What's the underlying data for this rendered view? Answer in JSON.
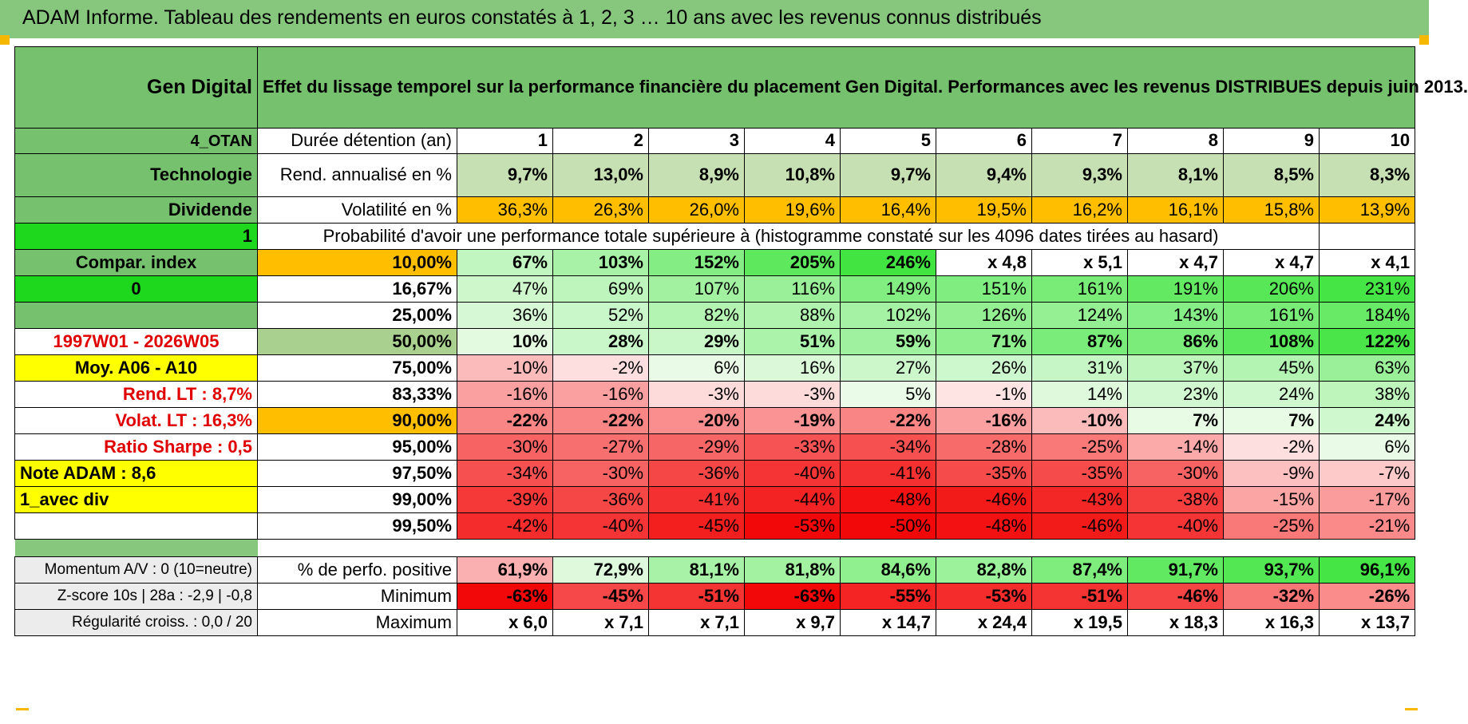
{
  "title": "ADAM Informe. Tableau des rendements en euros constatés à 1, 2, 3 … 10 ans avec les revenus connus distribués",
  "header": {
    "fund": "Gen Digital",
    "description": "Effet du lissage temporel sur la performance financière du placement Gen Digital. Performances avec les revenus DISTRIBUES depuis juin 2013."
  },
  "rows": {
    "duration": {
      "side": "4_OTAN",
      "label": "Durée détention (an)",
      "values": [
        "1",
        "2",
        "3",
        "4",
        "5",
        "6",
        "7",
        "8",
        "9",
        "10"
      ]
    },
    "rend": {
      "side": "Technologie",
      "label": "Rend. annualisé en %",
      "values": [
        "9,7%",
        "13,0%",
        "8,9%",
        "10,8%",
        "9,7%",
        "9,4%",
        "9,3%",
        "8,1%",
        "8,5%",
        "8,3%"
      ]
    },
    "vol": {
      "side": "Dividende",
      "label": "Volatilité en %",
      "values": [
        "36,3%",
        "26,3%",
        "26,0%",
        "19,6%",
        "16,4%",
        "19,5%",
        "16,2%",
        "16,1%",
        "15,8%",
        "13,9%"
      ]
    },
    "prob_header": {
      "side": "1",
      "label": "Probabilité d'avoir une performance totale supérieure à (histogramme constaté sur les 4096 dates tirées au hasard)"
    }
  },
  "prob_rows": [
    {
      "side": "Compar. index",
      "pct": "10,00%",
      "values": [
        "67%",
        "103%",
        "152%",
        "205%",
        "246%",
        "x 4,8",
        "x 5,1",
        "x 4,7",
        "x 4,7",
        "x 4,1"
      ]
    },
    {
      "side": "0",
      "pct": "16,67%",
      "values": [
        "47%",
        "69%",
        "107%",
        "116%",
        "149%",
        "151%",
        "161%",
        "191%",
        "206%",
        "231%"
      ]
    },
    {
      "side": "",
      "pct": "25,00%",
      "values": [
        "36%",
        "52%",
        "82%",
        "88%",
        "102%",
        "126%",
        "124%",
        "143%",
        "161%",
        "184%"
      ]
    },
    {
      "side": "1997W01 - 2026W05",
      "pct": "50,00%",
      "values": [
        "10%",
        "28%",
        "29%",
        "51%",
        "59%",
        "71%",
        "87%",
        "86%",
        "108%",
        "122%"
      ]
    },
    {
      "side": "Moy. A06 - A10",
      "pct": "75,00%",
      "values": [
        "-10%",
        "-2%",
        "6%",
        "16%",
        "27%",
        "26%",
        "31%",
        "37%",
        "45%",
        "63%"
      ]
    },
    {
      "side": "Rend. LT :   8,7%",
      "pct": "83,33%",
      "values": [
        "-16%",
        "-16%",
        "-3%",
        "-3%",
        "5%",
        "-1%",
        "14%",
        "23%",
        "24%",
        "38%"
      ]
    },
    {
      "side": "Volat. LT :   16,3%",
      "pct": "90,00%",
      "values": [
        "-22%",
        "-22%",
        "-20%",
        "-19%",
        "-22%",
        "-16%",
        "-10%",
        "7%",
        "7%",
        "24%"
      ]
    },
    {
      "side": "Ratio Sharpe :    0,5",
      "pct": "95,00%",
      "values": [
        "-30%",
        "-27%",
        "-29%",
        "-33%",
        "-34%",
        "-28%",
        "-25%",
        "-14%",
        "-2%",
        "6%"
      ]
    },
    {
      "side": "Note ADAM : 8,6",
      "pct": "97,50%",
      "values": [
        "-34%",
        "-30%",
        "-36%",
        "-40%",
        "-41%",
        "-35%",
        "-35%",
        "-30%",
        "-9%",
        "-7%"
      ]
    },
    {
      "side": "1_avec div",
      "pct": "99,00%",
      "values": [
        "-39%",
        "-36%",
        "-41%",
        "-44%",
        "-48%",
        "-46%",
        "-43%",
        "-38%",
        "-15%",
        "-17%"
      ]
    },
    {
      "side": "",
      "pct": "99,50%",
      "values": [
        "-42%",
        "-40%",
        "-45%",
        "-53%",
        "-50%",
        "-48%",
        "-46%",
        "-40%",
        "-25%",
        "-21%"
      ]
    }
  ],
  "bottom_rows": [
    {
      "side": "Momentum A/V : 0 (10=neutre)",
      "label": "% de perfo. positive",
      "values": [
        "61,9%",
        "72,9%",
        "81,1%",
        "81,8%",
        "84,6%",
        "82,8%",
        "87,4%",
        "91,7%",
        "93,7%",
        "96,1%"
      ]
    },
    {
      "side": "Z-score 10s | 28a : -2,9 | -0,8",
      "label": "Minimum",
      "values": [
        "-63%",
        "-45%",
        "-51%",
        "-63%",
        "-55%",
        "-53%",
        "-51%",
        "-46%",
        "-32%",
        "-26%"
      ]
    },
    {
      "side": "Régularité croiss. : 0,0 / 20",
      "label": "Maximum",
      "values": [
        "x 6,0",
        "x 7,1",
        "x 7,1",
        "x 9,7",
        "x 14,7",
        "x 24,4",
        "x 19,5",
        "x 18,3",
        "x 16,3",
        "x 13,7"
      ]
    }
  ],
  "colors": {
    "title_bar": "#86c77d",
    "label_green": "#76c16e",
    "bright_green": "#1ed81e",
    "yellow": "#ffff00",
    "orange": "#ffbf00",
    "light_olive": "#c6e0b4",
    "side_red": "#e00000"
  }
}
